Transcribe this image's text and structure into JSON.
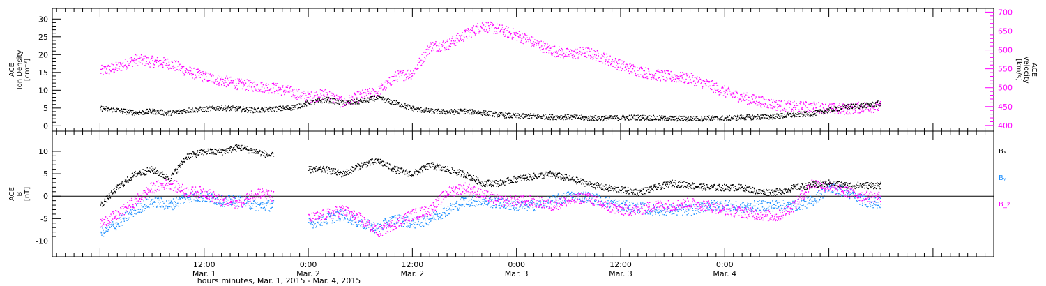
{
  "chart_data": [
    {
      "type": "scatter",
      "panel": "top",
      "left_axis": {
        "label_lines": [
          "ACE",
          "Ion Density",
          "[cm⁻³]"
        ],
        "ylim": [
          -1.5,
          33
        ],
        "ticks": [
          0,
          5,
          10,
          15,
          20,
          25,
          30
        ]
      },
      "right_axis": {
        "label_lines": [
          "ACE",
          "Velocity",
          "[km/s]"
        ],
        "ylim": [
          385,
          710
        ],
        "ticks": [
          400,
          450,
          500,
          550,
          600,
          650,
          700
        ]
      },
      "series": [
        {
          "axis": "left",
          "color": "#000000",
          "x": [
            0,
            2,
            4,
            6,
            8,
            10,
            12,
            14,
            16,
            18,
            20,
            22,
            24,
            26,
            28,
            30,
            32,
            34,
            36,
            38,
            40,
            42,
            44,
            46,
            48,
            50,
            52,
            54,
            56,
            58,
            60,
            62,
            64,
            66,
            68,
            70,
            72,
            74,
            76,
            78,
            80,
            82,
            84,
            86,
            88,
            90
          ],
          "y": [
            5,
            4.5,
            3.8,
            4.2,
            3.6,
            4.5,
            4.8,
            5.2,
            4.8,
            4.5,
            4.8,
            5.2,
            6.5,
            7.5,
            6.5,
            7,
            8,
            6.5,
            5,
            4.2,
            4,
            4.2,
            3.8,
            3.2,
            2.8,
            2.8,
            2.6,
            2.6,
            2.3,
            2.2,
            2.4,
            2.5,
            2.3,
            2.2,
            2.1,
            2.2,
            2.2,
            2.5,
            2.6,
            2.8,
            3.2,
            3.5,
            4.5,
            5.5,
            5.8,
            6.5
          ]
        },
        {
          "axis": "right",
          "color": "#ff00ff",
          "x": [
            0,
            2,
            4,
            6,
            8,
            10,
            12,
            14,
            16,
            18,
            20,
            22,
            24,
            26,
            28,
            30,
            32,
            34,
            36,
            38,
            40,
            42,
            44,
            46,
            48,
            50,
            52,
            54,
            56,
            58,
            60,
            62,
            64,
            66,
            68,
            70,
            72,
            74,
            76,
            78,
            80,
            82,
            84,
            86,
            88,
            90
          ],
          "y": [
            545,
            555,
            575,
            570,
            565,
            545,
            530,
            520,
            510,
            505,
            500,
            490,
            475,
            485,
            460,
            480,
            490,
            530,
            540,
            610,
            615,
            640,
            665,
            655,
            640,
            620,
            600,
            590,
            595,
            580,
            560,
            545,
            535,
            530,
            525,
            510,
            490,
            475,
            465,
            455,
            450,
            450,
            445,
            445,
            450,
            450
          ]
        }
      ]
    },
    {
      "type": "scatter",
      "panel": "bottom",
      "left_axis": {
        "label_lines": [
          "ACE",
          "B",
          "[nT]"
        ],
        "ylim": [
          -13.5,
          14.5
        ],
        "ticks": [
          -10,
          -5,
          0,
          5,
          10
        ]
      },
      "zero_line": true,
      "legend": [
        {
          "name": "Bₓ",
          "color": "#000000"
        },
        {
          "name": "Bᵧ",
          "color": "#1e90ff"
        },
        {
          "name": "B_z",
          "color": "#ff00ff"
        }
      ],
      "series": [
        {
          "name": "Bx",
          "color": "#000000",
          "x": [
            0,
            2,
            4,
            6,
            8,
            10,
            12,
            14,
            16,
            18,
            20,
            22,
            24,
            26,
            28,
            30,
            32,
            34,
            36,
            38,
            40,
            42,
            44,
            46,
            48,
            50,
            52,
            54,
            56,
            58,
            60,
            62,
            64,
            66,
            68,
            70,
            72,
            74,
            76,
            78,
            80,
            82,
            84,
            86,
            88,
            90
          ],
          "y": [
            -2,
            2,
            5,
            6,
            4,
            9,
            10,
            10,
            11,
            10,
            9,
            null,
            6,
            6,
            5,
            7,
            8,
            6,
            5,
            7,
            6,
            5,
            3,
            3,
            4,
            4.5,
            5,
            4,
            3,
            2,
            1.5,
            1,
            2,
            3,
            2.5,
            2,
            2,
            2,
            1,
            1,
            2,
            2.5,
            3,
            2.5,
            2.5,
            2.5
          ]
        },
        {
          "name": "By",
          "color": "#1e90ff",
          "x": [
            0,
            2,
            4,
            6,
            8,
            10,
            12,
            14,
            16,
            18,
            20,
            22,
            24,
            26,
            28,
            30,
            32,
            34,
            36,
            38,
            40,
            42,
            44,
            46,
            48,
            50,
            52,
            54,
            56,
            58,
            60,
            62,
            64,
            66,
            68,
            70,
            72,
            74,
            76,
            78,
            80,
            82,
            84,
            86,
            88,
            90
          ],
          "y": [
            -8,
            -6,
            -3,
            -1,
            -2,
            0,
            0,
            -1,
            -1,
            -2,
            -2,
            null,
            -6,
            -5,
            -4,
            -6,
            -7,
            -5,
            -6,
            -5,
            -3,
            -1,
            -1,
            -1.5,
            -2,
            -2,
            -1,
            0,
            0,
            -1,
            -2,
            -2.5,
            -3,
            -3,
            -3,
            -2,
            -2,
            -2.5,
            -2,
            -2,
            -2,
            -1,
            2,
            1,
            -1,
            -1.5
          ]
        },
        {
          "name": "Bz",
          "color": "#ff00ff",
          "x": [
            0,
            2,
            4,
            6,
            8,
            10,
            12,
            14,
            16,
            18,
            20,
            22,
            24,
            26,
            28,
            30,
            32,
            34,
            36,
            38,
            40,
            42,
            44,
            46,
            48,
            50,
            52,
            54,
            56,
            58,
            60,
            62,
            64,
            66,
            68,
            70,
            72,
            74,
            76,
            78,
            80,
            82,
            84,
            86,
            88,
            90
          ],
          "y": [
            -6,
            -4,
            -1,
            2,
            3,
            1,
            1,
            -1,
            -1.5,
            1,
            0,
            null,
            -5,
            -4,
            -3,
            -5,
            -8,
            -6,
            -4,
            -3,
            1,
            2,
            0.5,
            -1,
            -1,
            -1,
            -2,
            -1,
            0,
            -2,
            -3,
            -3,
            -2,
            -2,
            -1.5,
            -2,
            -3,
            -3.5,
            -4,
            -4.5,
            -2,
            3,
            2,
            1,
            0,
            0
          ]
        }
      ]
    }
  ],
  "x_axis": {
    "range_hours": [
      -5.5,
      103
    ],
    "ticks": [
      {
        "hour": 12,
        "time": "12:00",
        "day": "Mar. 1"
      },
      {
        "hour": 24,
        "time": "0:00",
        "day": "Mar. 2"
      },
      {
        "hour": 36,
        "time": "12:00",
        "day": "Mar. 2"
      },
      {
        "hour": 48,
        "time": "0:00",
        "day": "Mar. 3"
      },
      {
        "hour": 60,
        "time": "12:00",
        "day": "Mar. 3"
      },
      {
        "hour": 72,
        "time": "0:00",
        "day": "Mar. 4"
      }
    ],
    "label": "hours:minutes, Mar. 1, 2015 - Mar. 4, 2015"
  }
}
